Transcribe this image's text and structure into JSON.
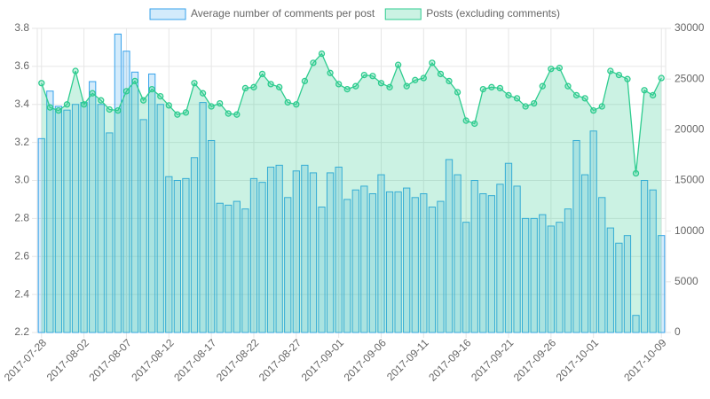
{
  "chart_data": {
    "type": "bar",
    "categories": [
      "2017-07-28",
      null,
      null,
      null,
      null,
      "2017-08-02",
      null,
      null,
      null,
      null,
      "2017-08-07",
      null,
      null,
      null,
      null,
      "2017-08-12",
      null,
      null,
      null,
      null,
      "2017-08-17",
      null,
      null,
      null,
      null,
      "2017-08-22",
      null,
      null,
      null,
      null,
      "2017-08-27",
      null,
      null,
      null,
      null,
      "2017-09-01",
      null,
      null,
      null,
      null,
      "2017-09-06",
      null,
      null,
      null,
      null,
      "2017-09-11",
      null,
      null,
      null,
      null,
      "2017-09-16",
      null,
      null,
      null,
      null,
      "2017-09-21",
      null,
      null,
      null,
      null,
      "2017-09-26",
      null,
      null,
      null,
      null,
      "2017-10-01",
      null,
      null,
      null,
      null,
      null,
      null,
      null,
      "2017-10-09"
    ],
    "series": [
      {
        "name": "Average number of comments per post",
        "type": "bar",
        "color": "#36a2eb",
        "values": [
          3.22,
          3.47,
          3.39,
          3.37,
          3.4,
          3.41,
          3.52,
          3.4,
          3.25,
          3.77,
          3.68,
          3.57,
          3.32,
          3.56,
          3.4,
          3.02,
          3.0,
          3.01,
          3.12,
          3.41,
          3.21,
          2.88,
          2.87,
          2.89,
          2.85,
          3.01,
          2.99,
          3.07,
          3.08,
          2.91,
          3.05,
          3.08,
          3.04,
          2.86,
          3.04,
          3.07,
          2.9,
          2.95,
          2.97,
          2.93,
          3.03,
          2.94,
          2.94,
          2.96,
          2.91,
          2.93,
          2.86,
          2.89,
          3.11,
          3.03,
          2.78,
          3.0,
          2.93,
          2.92,
          2.98,
          3.09,
          2.97,
          2.8,
          2.8,
          2.82,
          2.76,
          2.78,
          2.85,
          3.21,
          3.03,
          3.26,
          2.91,
          2.75,
          2.67,
          2.71,
          2.29,
          3.0,
          2.95,
          2.71
        ]
      },
      {
        "name": "Posts (excluding comments)",
        "type": "line",
        "axis": "y2",
        "color": "#2ecc8f",
        "values": [
          24600,
          22200,
          21900,
          22500,
          25800,
          22500,
          23600,
          22900,
          22000,
          21900,
          23800,
          24800,
          22900,
          24000,
          23300,
          22400,
          21500,
          21700,
          24600,
          23600,
          22300,
          22600,
          21600,
          21500,
          24100,
          24200,
          25500,
          24500,
          24200,
          22700,
          22500,
          24800,
          26600,
          27500,
          25600,
          24500,
          24000,
          24300,
          25400,
          25300,
          24600,
          24200,
          26400,
          24300,
          24900,
          25100,
          26600,
          25500,
          24800,
          23700,
          20900,
          20600,
          24000,
          24200,
          24100,
          23400,
          23100,
          22300,
          22600,
          24300,
          26000,
          26100,
          24300,
          23400,
          23100,
          21900,
          22300,
          25800,
          25400,
          25000,
          15700,
          23900,
          23400,
          25100
        ]
      }
    ],
    "ylim": [
      2.2,
      3.8
    ],
    "yticks": [
      2.2,
      2.4,
      2.6,
      2.8,
      {
        "value": 3,
        "label": "3.0"
      },
      3.2,
      3.4,
      3.6,
      3.8
    ],
    "y2lim": [
      0,
      30000
    ],
    "y2ticks": [
      0,
      5000,
      10000,
      15000,
      20000,
      25000,
      30000
    ],
    "grid": true,
    "legend": "top"
  }
}
